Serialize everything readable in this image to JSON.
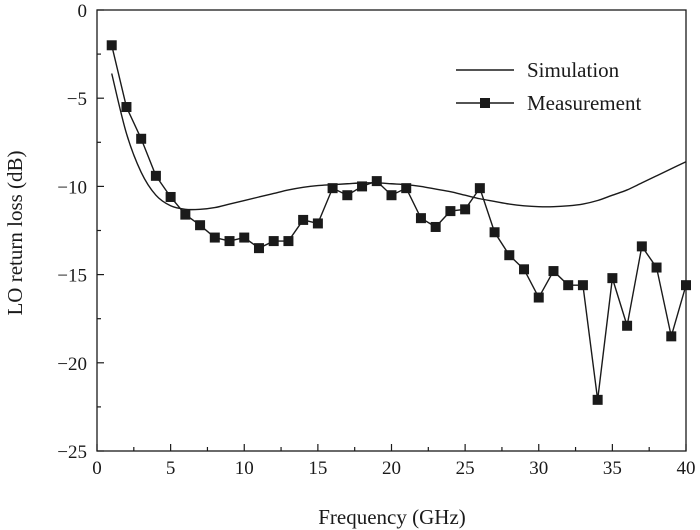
{
  "chart_data": {
    "type": "line",
    "xlabel": "Frequency (GHz)",
    "ylabel": "LO return loss (dB)",
    "xlim": [
      0,
      40
    ],
    "ylim": [
      -25,
      0
    ],
    "xticks": [
      0,
      5,
      10,
      15,
      20,
      25,
      30,
      35,
      40
    ],
    "yticks": [
      0,
      -5,
      -10,
      -15,
      -20,
      -25
    ],
    "grid": false,
    "legend_position": "top-right",
    "series": [
      {
        "name": "Simulation",
        "style": "solid-line",
        "x": [
          1,
          2,
          3,
          4,
          5,
          6,
          7,
          8,
          9,
          10,
          11,
          12,
          13,
          14,
          15,
          16,
          17,
          18,
          19,
          20,
          21,
          22,
          23,
          24,
          25,
          26,
          27,
          28,
          29,
          30,
          31,
          32,
          33,
          34,
          35,
          36,
          37,
          38,
          39,
          40
        ],
        "values": [
          -3.6,
          -7.0,
          -9.2,
          -10.5,
          -11.1,
          -11.3,
          -11.3,
          -11.2,
          -11.0,
          -10.8,
          -10.6,
          -10.4,
          -10.2,
          -10.05,
          -9.95,
          -9.9,
          -9.85,
          -9.8,
          -9.8,
          -9.85,
          -9.9,
          -10.0,
          -10.15,
          -10.3,
          -10.5,
          -10.7,
          -10.85,
          -11.0,
          -11.1,
          -11.15,
          -11.15,
          -11.1,
          -11.0,
          -10.8,
          -10.5,
          -10.2,
          -9.8,
          -9.4,
          -9.0,
          -8.6
        ]
      },
      {
        "name": "Measurement",
        "style": "line-square-markers",
        "x": [
          1,
          2,
          3,
          4,
          5,
          6,
          7,
          8,
          9,
          10,
          11,
          12,
          13,
          14,
          15,
          16,
          17,
          18,
          19,
          20,
          21,
          22,
          23,
          24,
          25,
          26,
          27,
          28,
          29,
          30,
          31,
          32,
          33,
          34,
          35,
          36,
          37,
          38,
          39,
          40
        ],
        "values": [
          -2.0,
          -5.5,
          -7.3,
          -9.4,
          -10.6,
          -11.6,
          -12.2,
          -12.9,
          -13.1,
          -12.9,
          -13.5,
          -13.1,
          -13.1,
          -11.9,
          -12.1,
          -10.1,
          -10.5,
          -10.0,
          -9.7,
          -10.5,
          -10.1,
          -11.8,
          -12.3,
          -11.4,
          -11.3,
          -10.1,
          -12.6,
          -13.9,
          -14.7,
          -16.3,
          -14.8,
          -15.6,
          -15.6,
          -22.1,
          -15.2,
          -17.9,
          -13.4,
          -14.6,
          -18.5,
          -15.6
        ]
      }
    ],
    "colors": {
      "ink": "#1a1a1a",
      "background": "#ffffff"
    }
  }
}
